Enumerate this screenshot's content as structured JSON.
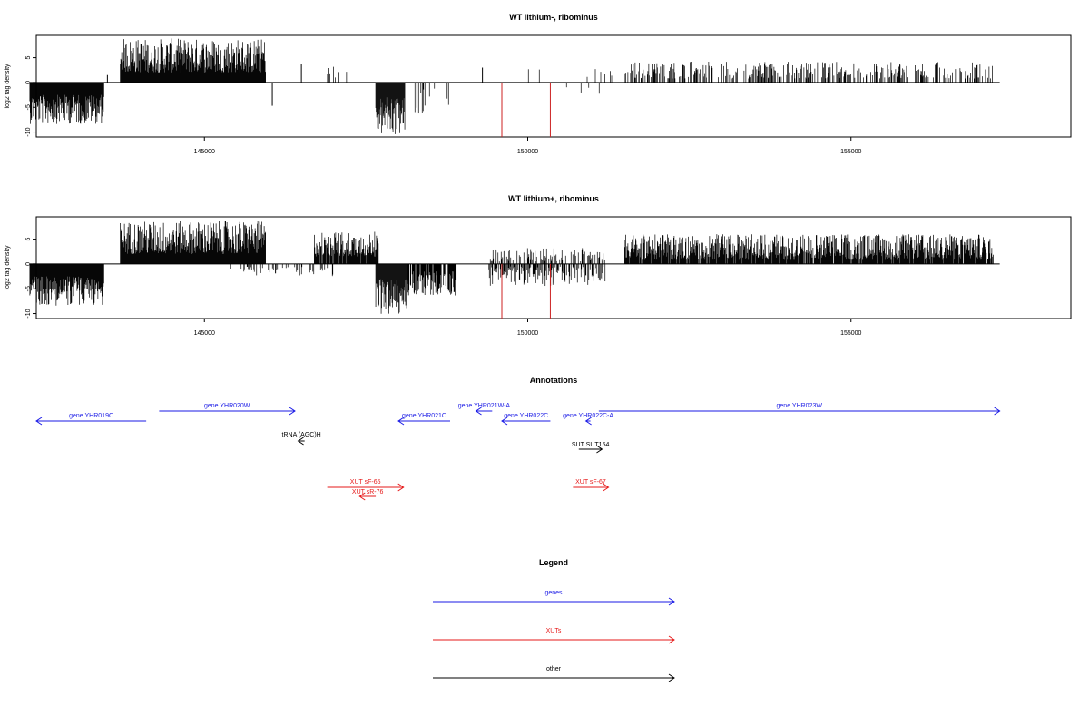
{
  "chart_data": [
    {
      "type": "bar",
      "title": "WT lithium-, ribominus",
      "ylabel": "log2 tag density",
      "xlim": [
        142400,
        158400
      ],
      "ylim": [
        -11,
        9.5
      ],
      "yticks": [
        -10,
        -5,
        0,
        5
      ],
      "xticks": [
        145000,
        150000,
        155000
      ],
      "baseline_range": [
        142300,
        157300
      ],
      "color": "#000000",
      "highlight_color": "#cc2222",
      "regions": [
        {
          "strand": "minus",
          "start": 142300,
          "end": 143450,
          "min": 2.5,
          "max": 8.4,
          "density": 1.0
        },
        {
          "strand": "plus",
          "start": 143700,
          "end": 145950,
          "min": 2.0,
          "max": 8.9,
          "density": 1.0
        },
        {
          "strand": "minus",
          "start": 147650,
          "end": 148100,
          "min": 3.0,
          "max": 10.8,
          "density": 1.0
        },
        {
          "strand": "plus",
          "start": 151500,
          "end": 157200,
          "min": 0.8,
          "max": 4.2,
          "density": 0.35
        },
        {
          "strand": "plus",
          "start": 146700,
          "end": 147300,
          "min": 1.0,
          "max": 3.2,
          "density": 0.08
        },
        {
          "strand": "minus",
          "start": 148200,
          "end": 148800,
          "min": 1.0,
          "max": 6.5,
          "density": 0.12
        },
        {
          "strand": "plus",
          "start": 149800,
          "end": 150400,
          "min": 0.8,
          "max": 3.0,
          "density": 0.06
        },
        {
          "strand": "minus",
          "start": 150600,
          "end": 151200,
          "min": 0.5,
          "max": 2.5,
          "density": 0.08
        },
        {
          "strand": "plus",
          "start": 150800,
          "end": 151300,
          "min": 1.0,
          "max": 2.8,
          "density": 0.08
        }
      ],
      "spikes": [
        {
          "x": 143500,
          "y": 1.5
        },
        {
          "x": 146050,
          "y": -4.7
        },
        {
          "x": 146500,
          "y": 3.8
        },
        {
          "x": 149300,
          "y": 3.0
        },
        {
          "x": 149600,
          "y": -3.5
        },
        {
          "x": 149600,
          "y": -11,
          "highlight": true
        },
        {
          "x": 150350,
          "y": -11,
          "highlight": true
        }
      ]
    },
    {
      "type": "bar",
      "title": "WT lithium+, ribominus",
      "ylabel": "log2 tag density",
      "xlim": [
        142400,
        158400
      ],
      "ylim": [
        -11,
        9.5
      ],
      "yticks": [
        -10,
        -5,
        0,
        5
      ],
      "xticks": [
        145000,
        150000,
        155000
      ],
      "baseline_range": [
        142300,
        157300
      ],
      "color": "#000000",
      "highlight_color": "#cc2222",
      "regions": [
        {
          "strand": "minus",
          "start": 142300,
          "end": 143450,
          "min": 2.5,
          "max": 8.4,
          "density": 1.0
        },
        {
          "strand": "plus",
          "start": 143700,
          "end": 145950,
          "min": 2.0,
          "max": 8.7,
          "density": 1.0
        },
        {
          "strand": "plus",
          "start": 146700,
          "end": 147700,
          "min": 1.5,
          "max": 6.5,
          "density": 0.9
        },
        {
          "strand": "minus",
          "start": 147650,
          "end": 148150,
          "min": 3.0,
          "max": 10.5,
          "density": 1.0
        },
        {
          "strand": "minus",
          "start": 148150,
          "end": 148900,
          "min": 1.5,
          "max": 6.5,
          "density": 0.8
        },
        {
          "strand": "minus",
          "start": 149400,
          "end": 151200,
          "min": 0.5,
          "max": 4.5,
          "density": 0.5
        },
        {
          "strand": "plus",
          "start": 149400,
          "end": 151200,
          "min": 0.5,
          "max": 3.2,
          "density": 0.35
        },
        {
          "strand": "plus",
          "start": 151500,
          "end": 157200,
          "min": 1.0,
          "max": 6.0,
          "density": 0.9
        },
        {
          "strand": "minus",
          "start": 145400,
          "end": 147000,
          "min": 0.5,
          "max": 2.5,
          "density": 0.15
        }
      ],
      "spikes": [
        {
          "x": 146100,
          "y": -1.9
        },
        {
          "x": 149600,
          "y": -11,
          "highlight": true
        },
        {
          "x": 150350,
          "y": -11,
          "highlight": true
        }
      ]
    }
  ],
  "annotations": {
    "title": "Annotations",
    "xlim": [
      142400,
      158400
    ],
    "features": [
      {
        "label": "gene YHR019C",
        "type": "gene",
        "strand": "-",
        "start": 142400,
        "end": 144100,
        "row": 1
      },
      {
        "label": "gene YHR020W",
        "type": "gene",
        "strand": "+",
        "start": 144300,
        "end": 146400,
        "row": 0
      },
      {
        "label": "tRNA (AGC)H",
        "type": "other",
        "strand": "-",
        "start": 146450,
        "end": 146550,
        "row": 2
      },
      {
        "label": "gene YHR021C",
        "type": "gene",
        "strand": "-",
        "start": 148000,
        "end": 148800,
        "row": 1
      },
      {
        "label": "gene YHR021W-A",
        "type": "gene",
        "strand": "-",
        "start": 149200,
        "end": 149450,
        "row": 0
      },
      {
        "label": "gene YHR022C",
        "type": "gene",
        "strand": "-",
        "start": 149600,
        "end": 150350,
        "row": 1
      },
      {
        "label": "gene YHR022C-A",
        "type": "gene",
        "strand": "-",
        "start": 150900,
        "end": 150970,
        "row": 1
      },
      {
        "label": "gene YHR023W",
        "type": "gene",
        "strand": "+",
        "start": 151100,
        "end": 157300,
        "row": 0
      },
      {
        "label": "SUT SUT154",
        "type": "other",
        "strand": "+",
        "start": 150790,
        "end": 151150,
        "row": 3
      },
      {
        "label": "XUT sF-65",
        "type": "xut",
        "strand": "+",
        "start": 146900,
        "end": 148080,
        "row": 4
      },
      {
        "label": "XUT sR-76",
        "type": "xut",
        "strand": "-",
        "start": 147400,
        "end": 147650,
        "row": 5
      },
      {
        "label": "XUT sF-67",
        "type": "xut",
        "strand": "+",
        "start": 150700,
        "end": 151250,
        "row": 4
      }
    ]
  },
  "legend": {
    "title": "Legend",
    "items": [
      {
        "label": "genes",
        "color": "#1a1ae6"
      },
      {
        "label": "XUTs",
        "color": "#e61a1a"
      },
      {
        "label": "other",
        "color": "#000000"
      }
    ]
  },
  "colors": {
    "gene": "#1a1ae6",
    "xut": "#e61a1a",
    "other": "#000000"
  }
}
